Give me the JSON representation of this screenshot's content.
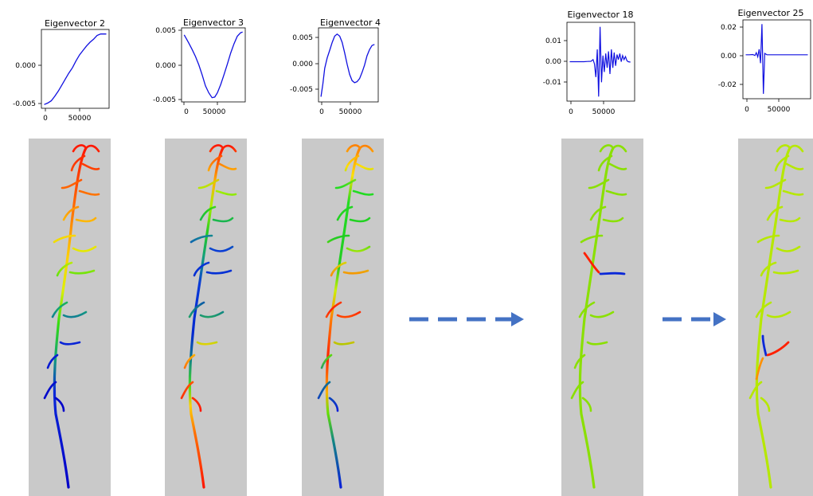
{
  "colors": {
    "plot_line": "#1010e0",
    "panel_bg": "#c9c9c9",
    "arrow": "#4472c4",
    "jet_red": "#ff1500",
    "jet_orange": "#ff8000",
    "jet_yellow": "#ffe000",
    "jet_green": "#22cc11",
    "jet_lime": "#8ae000",
    "jet_teal": "#138a80",
    "jet_blue": "#0a28d8",
    "jet_darkblue": "#0000c0"
  },
  "chart_data": [
    {
      "type": "line",
      "title": "Eigenvector 2",
      "xlabel": "",
      "ylabel": "",
      "x_ticks": [
        "0",
        "50000"
      ],
      "y_ticks": [
        "0.000",
        "-0.005"
      ],
      "xlim": [
        -4000,
        92000
      ],
      "ylim": [
        -0.0057,
        0.0048
      ],
      "series": [
        {
          "x": [
            0,
            5000,
            10000,
            15000,
            20000,
            25000,
            30000,
            35000,
            40000,
            45000,
            50000,
            55000,
            60000,
            65000,
            70000,
            75000,
            80000,
            85000,
            88000
          ],
          "y": [
            -0.0052,
            -0.005,
            -0.0047,
            -0.0041,
            -0.0034,
            -0.0026,
            -0.0018,
            -0.001,
            -0.0003,
            0.0006,
            0.0014,
            0.002,
            0.0026,
            0.0031,
            0.0035,
            0.004,
            0.0042,
            0.0042,
            0.0042
          ]
        }
      ]
    },
    {
      "type": "line",
      "title": "Eigenvector 3",
      "xlabel": "",
      "ylabel": "",
      "x_ticks": [
        "0",
        "50000"
      ],
      "y_ticks": [
        "0.005",
        "0.000",
        "-0.005"
      ],
      "xlim": [
        -4000,
        92000
      ],
      "ylim": [
        -0.0053,
        0.0053
      ],
      "series": [
        {
          "x": [
            0,
            3000,
            7000,
            12000,
            17000,
            22000,
            27000,
            32000,
            37000,
            42000,
            46000,
            50000,
            55000,
            60000,
            65000,
            70000,
            75000,
            80000,
            85000,
            88000
          ],
          "y": [
            0.0043,
            0.0038,
            0.0031,
            0.0022,
            0.0012,
            0.0,
            -0.0014,
            -0.003,
            -0.004,
            -0.0047,
            -0.0046,
            -0.004,
            -0.0028,
            -0.0014,
            0.0001,
            0.0017,
            0.003,
            0.0041,
            0.0046,
            0.0047
          ]
        }
      ]
    },
    {
      "type": "line",
      "title": "Eigenvector 4",
      "xlabel": "",
      "ylabel": "",
      "x_ticks": [
        "0",
        "50000"
      ],
      "y_ticks": [
        "0.005",
        "0.000",
        "-0.005"
      ],
      "xlim": [
        -4000,
        92000
      ],
      "ylim": [
        -0.0075,
        0.0068
      ],
      "series": [
        {
          "x": [
            0,
            3000,
            6000,
            10000,
            14000,
            18000,
            22000,
            26000,
            30000,
            34000,
            38000,
            42000,
            46000,
            50000,
            54000,
            58000,
            62000,
            66000,
            70000,
            74000,
            78000,
            82000,
            86000
          ],
          "y": [
            -0.0065,
            -0.004,
            -0.001,
            0.001,
            0.0025,
            0.004,
            0.0052,
            0.0056,
            0.0052,
            0.004,
            0.002,
            -0.0002,
            -0.0022,
            -0.0034,
            -0.0038,
            -0.0036,
            -0.003,
            -0.0018,
            -0.0004,
            0.0014,
            0.0026,
            0.0034,
            0.0036
          ]
        }
      ]
    },
    {
      "type": "line",
      "title": "Eigenvector 18",
      "xlabel": "",
      "ylabel": "",
      "x_ticks": [
        "0",
        "50000"
      ],
      "y_ticks": [
        "0.01",
        "0.00",
        "-0.01"
      ],
      "xlim": [
        -4000,
        92000
      ],
      "ylim": [
        -0.0192,
        0.0192
      ],
      "series": [
        {
          "x": [
            0,
            10000,
            20000,
            25000,
            30000,
            33000,
            35000,
            37000,
            39000,
            41000,
            43000,
            45000,
            47000,
            49000,
            51000,
            53000,
            55000,
            57000,
            59000,
            61000,
            63000,
            65000,
            67000,
            69000,
            71000,
            73000,
            75000,
            77000,
            79000,
            81000,
            83000,
            86000
          ],
          "y": [
            0.0,
            0.0,
            0.0,
            0.0001,
            0.0002,
            0.001,
            -0.001,
            -0.0075,
            0.006,
            -0.017,
            0.017,
            -0.01,
            0.003,
            -0.005,
            0.004,
            -0.003,
            0.005,
            -0.006,
            0.006,
            -0.003,
            0.0045,
            -0.002,
            0.0035,
            0.001,
            0.004,
            0.0,
            0.003,
            0.001,
            0.0025,
            0.0005,
            0.0,
            -0.0002
          ]
        }
      ]
    },
    {
      "type": "line",
      "title": "Eigenvector 25",
      "xlabel": "",
      "ylabel": "",
      "x_ticks": [
        "0",
        "50000"
      ],
      "y_ticks": [
        "0.02",
        "0.00",
        "-0.02"
      ],
      "xlim": [
        -4000,
        92000
      ],
      "ylim": [
        -0.0315,
        0.025
      ],
      "series": [
        {
          "x": [
            0,
            5000,
            10000,
            13000,
            15000,
            17000,
            19000,
            21000,
            23000,
            25000,
            27000,
            30000,
            40000,
            50000,
            60000,
            70000,
            80000,
            88000
          ],
          "y": [
            0.0,
            0.0,
            0.0002,
            -0.0005,
            0.0015,
            -0.0015,
            0.004,
            -0.006,
            0.022,
            -0.028,
            0.001,
            0.0,
            0.0,
            0.0,
            0.0,
            0.0,
            0.0,
            0.0
          ]
        }
      ]
    }
  ]
}
